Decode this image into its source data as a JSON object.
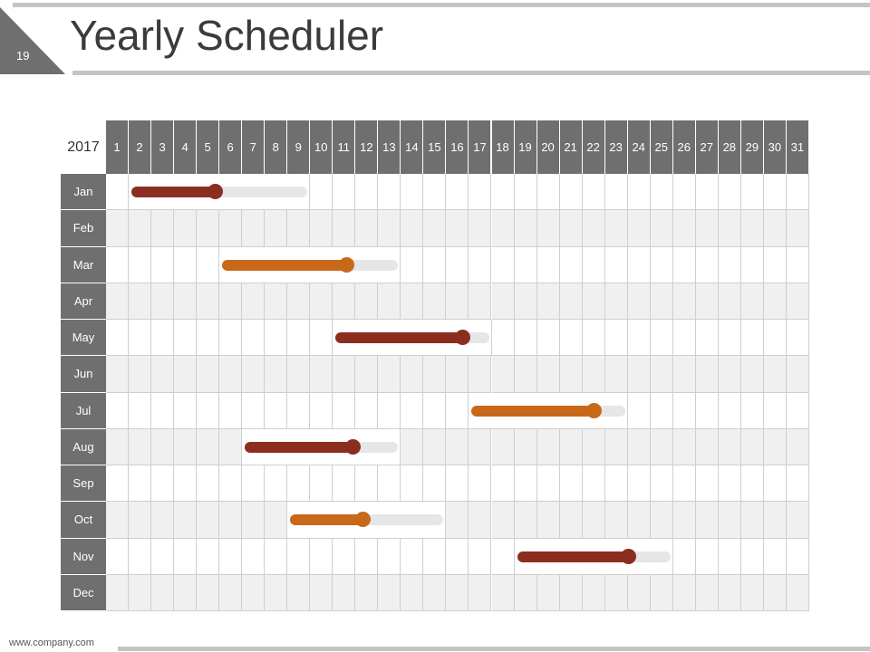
{
  "slide_number": "19",
  "title": "Yearly Scheduler",
  "year": "2017",
  "days": [
    "1",
    "2",
    "3",
    "4",
    "5",
    "6",
    "7",
    "8",
    "9",
    "10",
    "11",
    "12",
    "13",
    "14",
    "15",
    "16",
    "17",
    "18",
    "19",
    "20",
    "21",
    "22",
    "23",
    "24",
    "25",
    "26",
    "27",
    "28",
    "29",
    "30",
    "31"
  ],
  "months": [
    "Jan",
    "Feb",
    "Mar",
    "Apr",
    "May",
    "Jun",
    "Jul",
    "Aug",
    "Sep",
    "Oct",
    "Nov",
    "Dec"
  ],
  "colors": {
    "dark_red": "#8b2e20",
    "orange": "#c8691a",
    "track": "#e6e6e6",
    "header": "#6f6f6f",
    "alt_row": "#f0f0f0"
  },
  "tasks": [
    {
      "month": "Jan",
      "start_day": 2,
      "end_day": 9,
      "progress_pct": 48,
      "color": "#8b2e20"
    },
    {
      "month": "Mar",
      "start_day": 6,
      "end_day": 13,
      "progress_pct": 71,
      "color": "#c8691a"
    },
    {
      "month": "May",
      "start_day": 11,
      "end_day": 17,
      "progress_pct": 83,
      "color": "#8b2e20"
    },
    {
      "month": "Jul",
      "start_day": 17,
      "end_day": 23,
      "progress_pct": 80,
      "color": "#c8691a"
    },
    {
      "month": "Aug",
      "start_day": 7,
      "end_day": 13,
      "progress_pct": 71,
      "color": "#8b2e20"
    },
    {
      "month": "Oct",
      "start_day": 9,
      "end_day": 15,
      "progress_pct": 48,
      "color": "#c8691a"
    },
    {
      "month": "Nov",
      "start_day": 19,
      "end_day": 25,
      "progress_pct": 73,
      "color": "#8b2e20"
    }
  ],
  "footer": "www.company.com"
}
